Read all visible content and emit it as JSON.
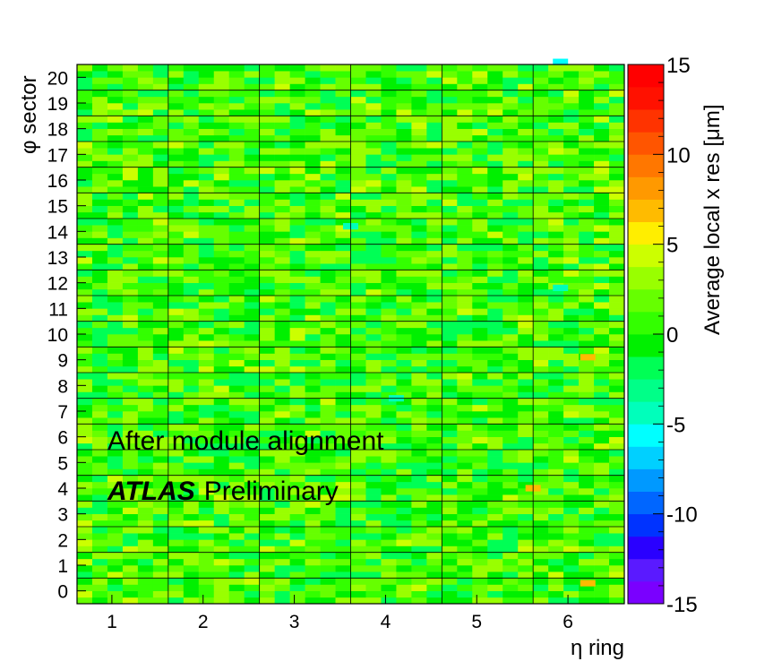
{
  "chart_data": {
    "type": "heatmap",
    "title": "",
    "xlabel": "η ring",
    "ylabel": "φ sector",
    "colorbar_label": "Average local x res [μm]",
    "x_tick_labels": [
      "1",
      "2",
      "3",
      "4",
      "5",
      "6"
    ],
    "y_tick_labels": [
      "0",
      "1",
      "2",
      "3",
      "4",
      "5",
      "6",
      "7",
      "8",
      "9",
      "10",
      "11",
      "12",
      "13",
      "14",
      "15",
      "16",
      "17",
      "18",
      "19",
      "20"
    ],
    "colorbar_tick_labels": [
      "15",
      "10",
      "5",
      "0",
      "-5",
      "-10",
      "-15"
    ],
    "zlim": [
      -15,
      15
    ],
    "x_bins_per_ring": 6,
    "y_bins_per_sector": 4,
    "typical_value_range": [
      -2.5,
      4
    ],
    "notable_cells": [
      {
        "ring": 4,
        "sector": 7.5,
        "value": -5
      },
      {
        "ring": 3.5,
        "sector": 14.2,
        "value": -5
      },
      {
        "ring": 5.8,
        "sector": 11.8,
        "value": -4
      },
      {
        "ring": 5.8,
        "sector": 20.6,
        "value": -6
      },
      {
        "ring": 5.5,
        "sector": 4.0,
        "value": 7
      },
      {
        "ring": 6.1,
        "sector": 9.1,
        "value": 7
      },
      {
        "ring": 6.1,
        "sector": 0.3,
        "value": 7
      }
    ],
    "annotations": {
      "line1": "After module alignment",
      "atlas": "ATLAS",
      "prelim": "Preliminary"
    },
    "colorscale": [
      "#7a00ff",
      "#5a1aff",
      "#2a00ff",
      "#0033ff",
      "#0066ff",
      "#0099ff",
      "#00d0ff",
      "#00ffff",
      "#00ffbb",
      "#00ff88",
      "#00ff55",
      "#00f000",
      "#33ff00",
      "#66ff00",
      "#99ff00",
      "#ccff00",
      "#ffee00",
      "#ffbb00",
      "#ff9900",
      "#ff7700",
      "#ff5500",
      "#ff3300",
      "#ff1100",
      "#ff0000"
    ]
  }
}
